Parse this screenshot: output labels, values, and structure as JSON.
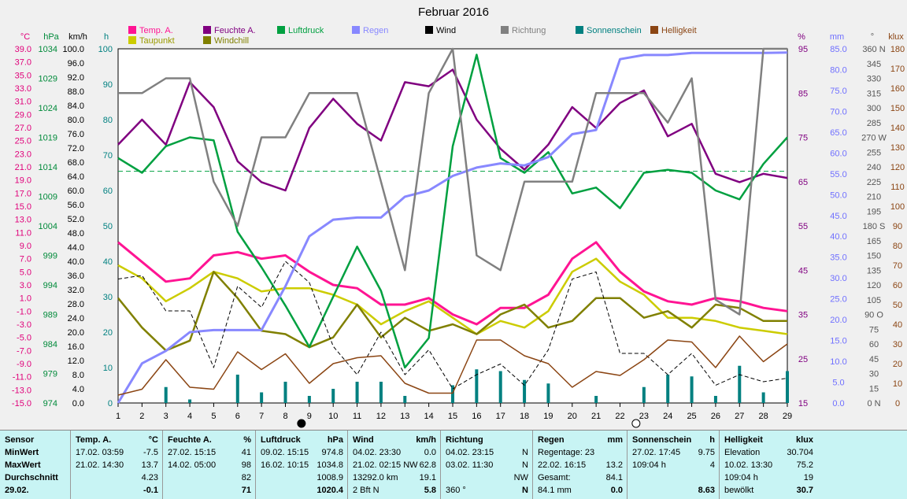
{
  "chart_data": {
    "type": "line",
    "title": "Februar 2016",
    "x": [
      1,
      2,
      3,
      4,
      5,
      6,
      7,
      8,
      9,
      10,
      11,
      12,
      13,
      14,
      15,
      16,
      17,
      18,
      19,
      20,
      21,
      22,
      23,
      24,
      25,
      26,
      27,
      28,
      29
    ],
    "left_axes": [
      {
        "unit": "°C",
        "ticks": [
          "39.0",
          "37.0",
          "35.0",
          "33.0",
          "31.0",
          "29.0",
          "27.0",
          "25.0",
          "23.0",
          "21.0",
          "19.0",
          "17.0",
          "15.0",
          "13.0",
          "11.0",
          "9.0",
          "7.0",
          "5.0",
          "3.0",
          "1.0",
          "-1.0",
          "-3.0",
          "-5.0",
          "-7.0",
          "-9.0",
          "-11.0",
          "-13.0",
          "-15.0"
        ],
        "color": "#e0007a"
      },
      {
        "unit": "hPa",
        "ticks": [
          "1034",
          "1029",
          "1024",
          "1019",
          "1014",
          "1009",
          "1004",
          "999",
          "994",
          "989",
          "984",
          "979",
          "974"
        ],
        "color": "#008a3a"
      },
      {
        "unit": "km/h",
        "ticks": [
          "100.0",
          "96.0",
          "92.0",
          "88.0",
          "84.0",
          "80.0",
          "76.0",
          "72.0",
          "68.0",
          "64.0",
          "60.0",
          "56.0",
          "52.0",
          "48.0",
          "44.0",
          "40.0",
          "36.0",
          "32.0",
          "28.0",
          "24.0",
          "20.0",
          "16.0",
          "12.0",
          "8.0",
          "4.0",
          "0.0"
        ],
        "color": "#000000"
      },
      {
        "unit": "h",
        "ticks": [
          "100",
          "90",
          "80",
          "70",
          "60",
          "50",
          "40",
          "30",
          "20",
          "10",
          "0"
        ],
        "color": "#008080"
      }
    ],
    "right_axes": [
      {
        "unit": "%",
        "ticks": [
          "95",
          "85",
          "75",
          "65",
          "55",
          "45",
          "35",
          "25",
          "15"
        ],
        "color": "#800080"
      },
      {
        "unit": "mm",
        "ticks": [
          "85.0",
          "80.0",
          "75.0",
          "70.0",
          "65.0",
          "60.0",
          "55.0",
          "50.0",
          "45.0",
          "40.0",
          "35.0",
          "30.0",
          "25.0",
          "20.0",
          "15.0",
          "10.0",
          "5.0",
          "0.0"
        ],
        "color": "#6f6fff"
      },
      {
        "unit": "°",
        "ticks": [
          "360 N",
          "345",
          "330",
          "315",
          "300",
          "285",
          "270 W",
          "255",
          "240",
          "225",
          "210",
          "195",
          "180 S",
          "165",
          "150",
          "135",
          "120",
          "105",
          "90 O",
          "75",
          "60",
          "45",
          "30",
          "15",
          "0 N"
        ],
        "color": "#555555"
      },
      {
        "unit": "klux",
        "ticks": [
          "180",
          "170",
          "160",
          "150",
          "140",
          "130",
          "120",
          "110",
          "100",
          "90",
          "80",
          "70",
          "60",
          "50",
          "40",
          "30",
          "20",
          "10",
          "0"
        ],
        "color": "#8b4513"
      }
    ],
    "legend": [
      "Temp. A.",
      "Feuchte A.",
      "Luftdruck",
      "Regen",
      "Wind",
      "Richtung",
      "Sonnenschein",
      "Helligkeit",
      "Taupunkt",
      "Windchill"
    ],
    "series": [
      {
        "name": "Temp. A.",
        "color": "#ff1493",
        "unit": "°C",
        "values": [
          9.5,
          6.5,
          3.5,
          4.0,
          7.5,
          8.0,
          7.0,
          7.5,
          5.0,
          3.0,
          2.5,
          0.0,
          0.0,
          1.0,
          -1.5,
          -3.0,
          -0.5,
          -0.5,
          1.5,
          7.0,
          9.5,
          5.0,
          2.0,
          0.5,
          0.0,
          1.0,
          0.5,
          -0.5,
          -1.0
        ]
      },
      {
        "name": "Taupunkt",
        "color": "#cccc00",
        "unit": "°C",
        "values": [
          6.0,
          4.0,
          0.5,
          2.5,
          5.0,
          4.0,
          2.0,
          2.5,
          2.5,
          1.5,
          0.0,
          -3.0,
          -1.0,
          0.5,
          -2.0,
          -4.5,
          -2.5,
          -3.5,
          -1.0,
          5.0,
          7.0,
          3.5,
          1.5,
          -2.0,
          -2.0,
          -2.5,
          -3.5,
          -4.0,
          -4.5
        ]
      },
      {
        "name": "Windchill",
        "color": "#808000",
        "unit": "°C",
        "values": [
          1.0,
          -3.5,
          -7.0,
          -5.5,
          5.0,
          1.0,
          -4.0,
          -4.5,
          -6.5,
          -5.0,
          0.0,
          -5.0,
          -2.0,
          -4.0,
          -3.0,
          -4.5,
          -1.5,
          0.0,
          -3.5,
          -2.5,
          1.0,
          1.0,
          -2.0,
          -1.0,
          -3.5,
          0.0,
          -0.5,
          -2.5,
          -2.5
        ]
      },
      {
        "name": "Feuchte A.",
        "color": "#800080",
        "unit": "%",
        "values": [
          77,
          83,
          77,
          92,
          86,
          73,
          68,
          66,
          81,
          88,
          82,
          78,
          92,
          91,
          95,
          83,
          76,
          71,
          77,
          86,
          81,
          87,
          90,
          79,
          82,
          70,
          68,
          70,
          69
        ]
      },
      {
        "name": "Luftdruck",
        "color": "#00a040",
        "unit": "hPa",
        "values": [
          1015.5,
          1013.0,
          1017.5,
          1019.0,
          1018.5,
          1003.0,
          997.0,
          990.5,
          983.5,
          992.0,
          1000.5,
          993.0,
          980.0,
          985.0,
          1017.5,
          1033.0,
          1015.5,
          1013.0,
          1016.5,
          1009.5,
          1010.5,
          1007.0,
          1013.0,
          1013.5,
          1013.0,
          1010.0,
          1008.5,
          1014.5,
          1019.0
        ]
      },
      {
        "name": "Regen",
        "color": "#8888ff",
        "unit": "mm",
        "values": [
          0.0,
          9.5,
          12.5,
          17.0,
          17.5,
          17.5,
          17.5,
          28.0,
          40.0,
          44.0,
          44.5,
          44.5,
          49.5,
          51.0,
          54.5,
          56.5,
          57.5,
          57.0,
          59.0,
          64.5,
          65.5,
          82.5,
          83.5,
          83.5,
          84.0,
          84.0,
          84.0,
          84.0,
          84.1
        ]
      },
      {
        "name": "Wind",
        "color": "#000000",
        "unit": "km/h",
        "values": [
          35.0,
          36.0,
          26.0,
          26.0,
          10.0,
          33.0,
          27.0,
          40.0,
          34.0,
          16.0,
          8.0,
          20.0,
          8.0,
          15.0,
          4.0,
          8.0,
          11.0,
          5.0,
          15.0,
          35.0,
          37.0,
          14.0,
          14.0,
          8.0,
          14.0,
          5.0,
          8.0,
          6.0,
          7.0
        ]
      },
      {
        "name": "Richtung",
        "color": "#808080",
        "unit": "°",
        "values": [
          315,
          315,
          330,
          330,
          225,
          180,
          270,
          270,
          315,
          315,
          315,
          225,
          135,
          315,
          360,
          150,
          135,
          225,
          225,
          225,
          315,
          315,
          315,
          285,
          330,
          105,
          90,
          360,
          360
        ]
      },
      {
        "name": "Helligkeit",
        "color": "#8b4513",
        "unit": "klux",
        "values": [
          4,
          7,
          22,
          8,
          7,
          26,
          17,
          25,
          10,
          20,
          23,
          24,
          10,
          5,
          5,
          32,
          32,
          24,
          20,
          8,
          16,
          14,
          22,
          32,
          31,
          18,
          34,
          21,
          30
        ]
      },
      {
        "name": "Sonnenschein",
        "color": "#008080",
        "unit": "h",
        "values": [
          0,
          0,
          4.5,
          1,
          0,
          8,
          3,
          6,
          2,
          4,
          6,
          6,
          2,
          0,
          5,
          9.5,
          9,
          6.5,
          5.5,
          0,
          2,
          0,
          4.5,
          8,
          7.5,
          2,
          10.5,
          3,
          9
        ]
      }
    ],
    "reference_line_hPa": 1013.25,
    "moon_markers": [
      {
        "day": 9,
        "phase": "new"
      },
      {
        "day": 23,
        "phase": "full"
      }
    ]
  },
  "legend_items": [
    {
      "label": "Temp. A.",
      "color": "#ff1493"
    },
    {
      "label": "Feuchte A.",
      "color": "#800080"
    },
    {
      "label": "Luftdruck",
      "color": "#00a040"
    },
    {
      "label": "Regen",
      "color": "#8888ff"
    },
    {
      "label": "Wind",
      "color": "#000000"
    },
    {
      "label": "Richtung",
      "color": "#808080"
    },
    {
      "label": "Sonnenschein",
      "color": "#008080"
    },
    {
      "label": "Helligkeit",
      "color": "#8b4513"
    },
    {
      "label": "Taupunkt",
      "color": "#cccc00"
    },
    {
      "label": "Windchill",
      "color": "#808000"
    }
  ],
  "table": {
    "sensor": {
      "title": "Sensor",
      "rows": [
        "MinWert",
        "MaxWert",
        "Durchschnitt",
        "29.02."
      ]
    },
    "temp": {
      "title": "Temp. A.",
      "unit": "°C",
      "rows": [
        [
          "17.02.  03:59",
          "-7.5"
        ],
        [
          "21.02.  14:30",
          "13.7"
        ],
        [
          "",
          "4.23"
        ],
        [
          "",
          "-0.1"
        ]
      ]
    },
    "feuchte": {
      "title": "Feuchte A.",
      "unit": "%",
      "rows": [
        [
          "27.02.   15:15",
          "41"
        ],
        [
          "14.02.   05:00",
          "98"
        ],
        [
          "",
          "82"
        ],
        [
          "",
          "71"
        ]
      ]
    },
    "luftdruck": {
      "title": "Luftdruck",
      "unit": "hPa",
      "rows": [
        [
          "09.02.  15:15",
          "974.8"
        ],
        [
          "16.02.  10:15",
          "1034.8"
        ],
        [
          "",
          "1008.9"
        ],
        [
          "",
          "1020.4"
        ]
      ]
    },
    "wind": {
      "title": "Wind",
      "unit": "km/h",
      "rows": [
        [
          "04.02.  23:30",
          "0.0"
        ],
        [
          "21.02.  02:15 NW",
          "62.8"
        ],
        [
          "13292.0 km",
          "19.1"
        ],
        [
          "2 Bft N",
          "5.8"
        ]
      ]
    },
    "richtung": {
      "title": "Richtung",
      "rows": [
        [
          "04.02.  23:15",
          "N"
        ],
        [
          "03.02.  11:30",
          "N"
        ],
        [
          "",
          "NW"
        ],
        [
          "360 °",
          "N"
        ]
      ]
    },
    "regen": {
      "title": "Regen",
      "unit": "mm",
      "rows": [
        [
          "Regentage: 23",
          ""
        ],
        [
          "22.02.  16:15",
          "13.2"
        ],
        [
          "Gesamt:",
          "84.1"
        ],
        [
          "84.1 mm",
          "0.0"
        ]
      ]
    },
    "sonne": {
      "title": "Sonnenschein",
      "unit": "h",
      "rows": [
        [
          "27.02.  17:45",
          "9.75"
        ],
        [
          "109:04 h",
          "4"
        ],
        [
          "",
          ""
        ],
        [
          "",
          "8.63"
        ]
      ]
    },
    "hell": {
      "title": "Helligkeit",
      "unit": "klux",
      "rows": [
        [
          "Elevation",
          "30.704"
        ],
        [
          "10.02.  13:30",
          "75.2"
        ],
        [
          "109:04 h",
          "19"
        ],
        [
          "bewölkt",
          "30.7"
        ]
      ]
    }
  }
}
